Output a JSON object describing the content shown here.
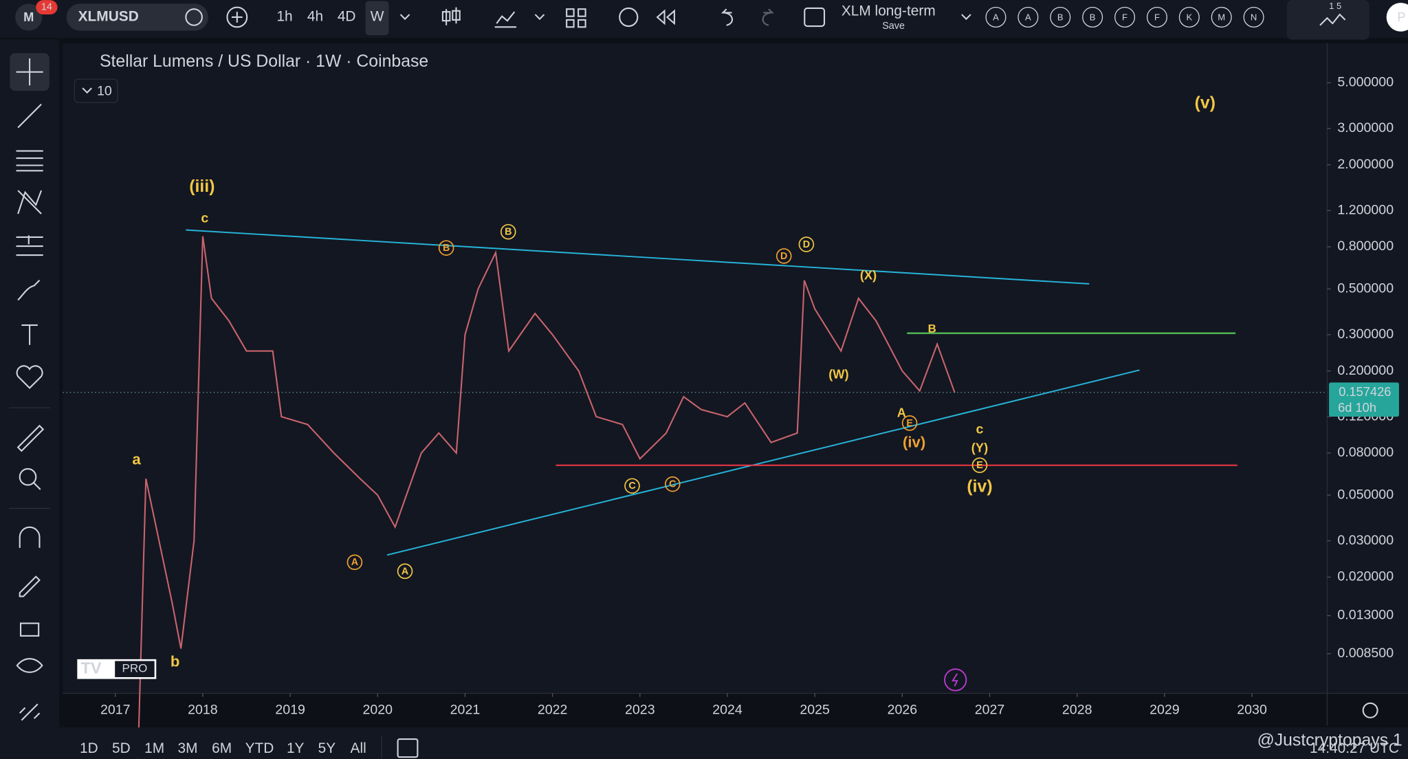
{
  "toolbar": {
    "badge": "14",
    "symbol": "XLMUSD",
    "intervals": [
      "1h",
      "4h",
      "4D",
      "W"
    ],
    "layout_name": "XLM long-term",
    "save": "Save",
    "alerts": [
      "A",
      "A",
      "B",
      "B",
      "F",
      "F",
      "K",
      "M",
      "N"
    ],
    "counter": "1 5",
    "partial": "P"
  },
  "legend": {
    "title": "Stellar Lumens / US Dollar · 1W · Coinbase",
    "indicator_count": "10"
  },
  "chart_data": {
    "type": "line",
    "log_scale": true,
    "color": "#c9646c",
    "x": [
      2017.25,
      2017.35,
      2017.5,
      2017.65,
      2017.75,
      2017.9,
      2018.0,
      2018.1,
      2018.3,
      2018.5,
      2018.8,
      2018.9,
      2019.2,
      2019.5,
      2019.8,
      2020.0,
      2020.2,
      2020.5,
      2020.7,
      2020.9,
      2021.0,
      2021.15,
      2021.35,
      2021.5,
      2021.8,
      2022.0,
      2022.3,
      2022.5,
      2022.8,
      2023.0,
      2023.3,
      2023.5,
      2023.7,
      2024.0,
      2024.2,
      2024.5,
      2024.8,
      2024.88,
      2025.0,
      2025.3,
      2025.5,
      2025.7,
      2026.0,
      2026.2,
      2026.4,
      2026.6
    ],
    "values": [
      0.002,
      0.06,
      0.03,
      0.015,
      0.009,
      0.03,
      0.9,
      0.45,
      0.35,
      0.25,
      0.25,
      0.12,
      0.11,
      0.08,
      0.06,
      0.05,
      0.035,
      0.08,
      0.1,
      0.08,
      0.3,
      0.5,
      0.75,
      0.25,
      0.38,
      0.3,
      0.2,
      0.12,
      0.11,
      0.075,
      0.1,
      0.15,
      0.13,
      0.12,
      0.14,
      0.09,
      0.1,
      0.55,
      0.4,
      0.25,
      0.45,
      0.35,
      0.2,
      0.16,
      0.27,
      0.157
    ],
    "xlim": [
      2016.4,
      2030.86
    ],
    "xticks": [
      2017,
      2018,
      2019,
      2020,
      2021,
      2022,
      2023,
      2024,
      2025,
      2026,
      2027,
      2028,
      2029,
      2030
    ],
    "ylim": [
      0.00546,
      7.78
    ],
    "yticks": [
      {
        "value": 5,
        "label": "5.000000"
      },
      {
        "value": 3,
        "label": "3.000000"
      },
      {
        "value": 2,
        "label": "2.000000"
      },
      {
        "value": 1.2,
        "label": "1.200000"
      },
      {
        "value": 0.8,
        "label": "0.800000"
      },
      {
        "value": 0.5,
        "label": "0.500000"
      },
      {
        "value": 0.3,
        "label": "0.300000"
      },
      {
        "value": 0.2,
        "label": "0.200000"
      },
      {
        "value": 0.12,
        "label": "0.120000"
      },
      {
        "value": 0.08,
        "label": "0.080000"
      },
      {
        "value": 0.05,
        "label": "0.050000"
      },
      {
        "value": 0.03,
        "label": "0.030000"
      },
      {
        "value": 0.02,
        "label": "0.020000"
      },
      {
        "value": 0.013,
        "label": "0.013000"
      },
      {
        "value": 0.0085,
        "label": "0.008500"
      }
    ],
    "last_price": 0.157426,
    "countdown": "6d 10h",
    "annotations": [
      {
        "text": "(iii)",
        "color": "#f2c744"
      },
      {
        "text": "c",
        "color": "#f2c744"
      },
      {
        "text": "a",
        "color": "#f2c744"
      },
      {
        "text": "b",
        "color": "#f2c744"
      },
      {
        "text": "B",
        "color": "#f0a030",
        "circled": true
      },
      {
        "text": "B",
        "color": "#f2c744",
        "circled": true
      },
      {
        "text": "A",
        "color": "#f0a030",
        "circled": true
      },
      {
        "text": "A",
        "color": "#f2c744",
        "circled": true
      },
      {
        "text": "C",
        "color": "#f2c744",
        "circled": true
      },
      {
        "text": "C",
        "color": "#f0a030",
        "circled": true
      },
      {
        "text": "D",
        "color": "#f0a030",
        "circled": true
      },
      {
        "text": "D",
        "color": "#f2c744",
        "circled": true
      },
      {
        "text": "(X)",
        "color": "#f2c744"
      },
      {
        "text": "(W)",
        "color": "#f2c744"
      },
      {
        "text": "B",
        "color": "#f2c744"
      },
      {
        "text": "A",
        "color": "#f2c744"
      },
      {
        "text": "E",
        "color": "#f0a030",
        "circled": true
      },
      {
        "text": "(iv)",
        "color": "#f0a030"
      },
      {
        "text": "c",
        "color": "#f2c744"
      },
      {
        "text": "(Y)",
        "color": "#f2c744"
      },
      {
        "text": "E",
        "color": "#f2c744",
        "circled": true
      },
      {
        "text": "(iv)",
        "color": "#f2c744"
      },
      {
        "text": "(v)",
        "color": "#f2c744"
      }
    ]
  },
  "timeframes": [
    "1D",
    "5D",
    "1M",
    "3M",
    "6M",
    "YTD",
    "1Y",
    "5Y",
    "All"
  ],
  "logo": "PRO",
  "watermark": "@Justcryptopays 1",
  "clock": "14:40:27 UTC"
}
